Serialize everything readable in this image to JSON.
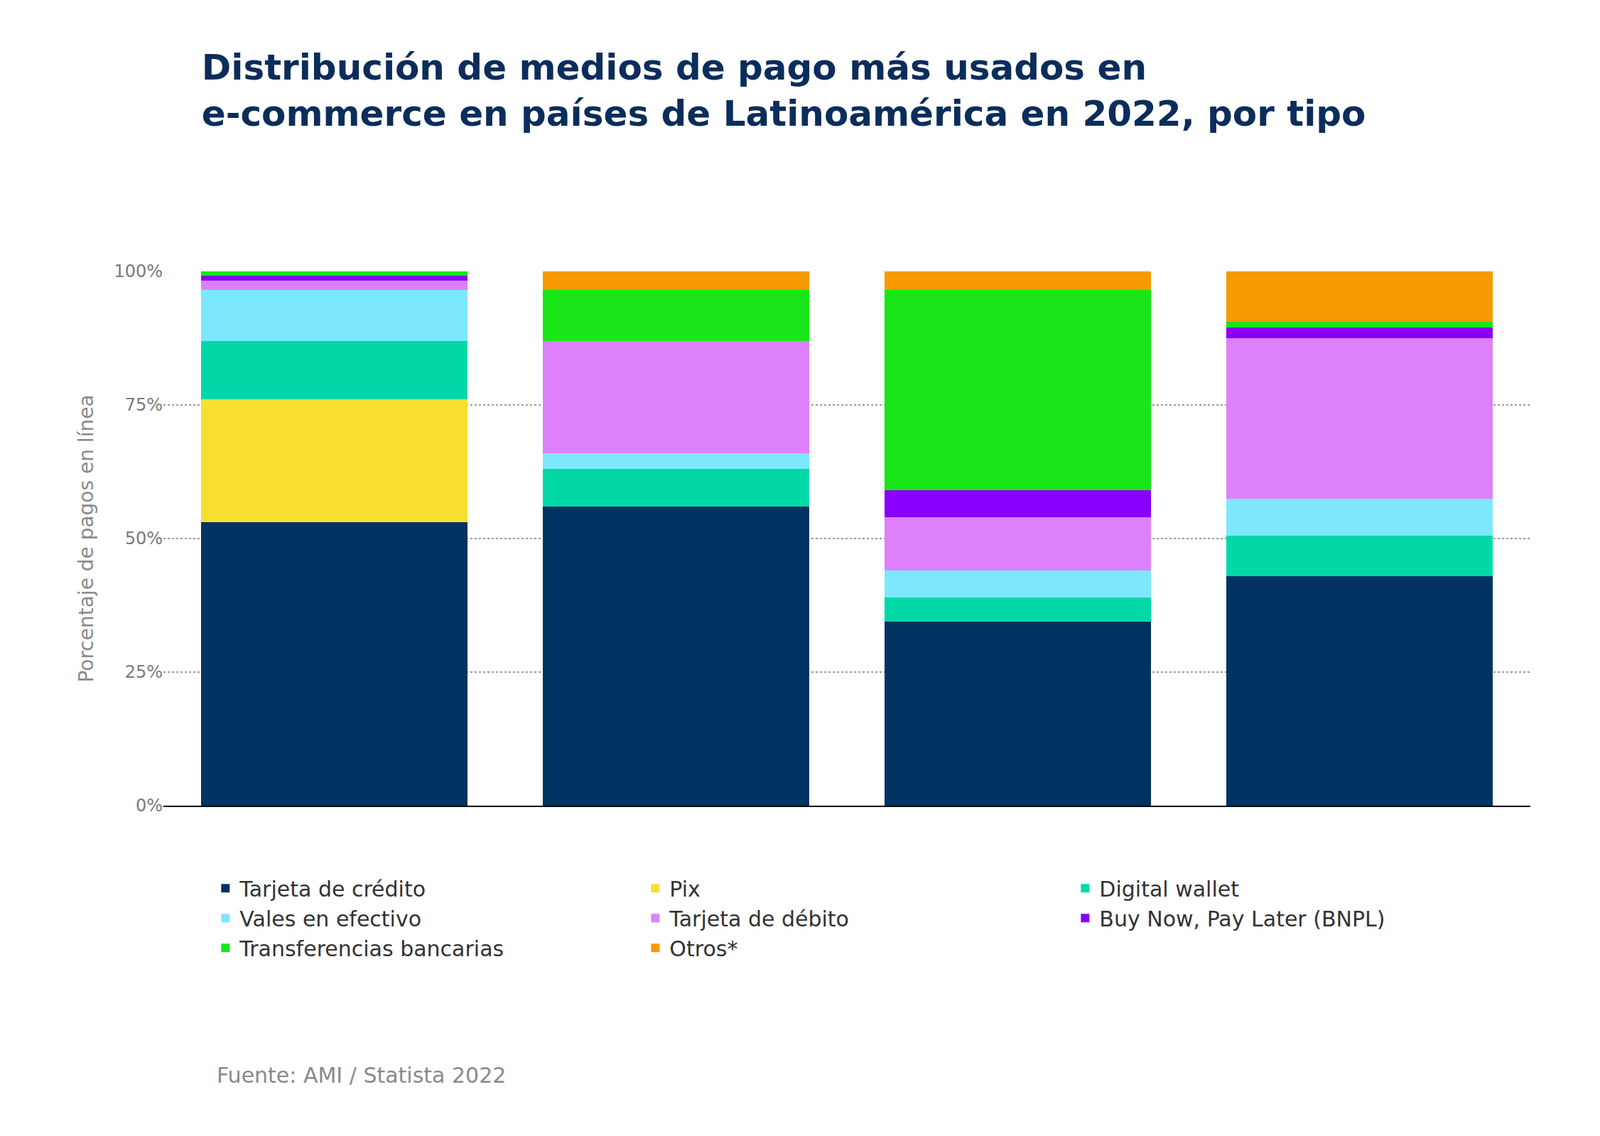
{
  "chart_data": {
    "type": "bar",
    "stacked": true,
    "title": "Distribución de medios de pago más usados en\ne-commerce en países de Latinoamérica en 2022, por tipo",
    "y_label": "Porcentaje de pagos en línea",
    "source": "Fuente: AMI / Statista 2022",
    "categories": [
      null,
      null,
      null,
      null
    ],
    "ylim": [
      0,
      100
    ],
    "yticks": [
      {
        "value": 0,
        "label": "0%"
      },
      {
        "value": 25,
        "label": "25%"
      },
      {
        "value": 50,
        "label": "50%"
      },
      {
        "value": 75,
        "label": "75%"
      },
      {
        "value": 100,
        "label": "100%"
      }
    ],
    "grid": true,
    "legend": "bottom",
    "tick_labels": "y",
    "series": [
      {
        "name": "Tarjeta de crédito",
        "color": "#003361",
        "values": [
          53,
          56,
          34.5,
          43
        ]
      },
      {
        "name": "Pix",
        "color": "#f7df32",
        "values": [
          23,
          0,
          0,
          0
        ]
      },
      {
        "name": "Digital wallet",
        "color": "#00d9a7",
        "values": [
          11,
          7,
          4.5,
          7.5
        ]
      },
      {
        "name": "Vales en efectivo",
        "color": "#7de8fb",
        "values": [
          9.5,
          3,
          5,
          7
        ]
      },
      {
        "name": "Tarjeta de débito",
        "color": "#de80fb",
        "values": [
          1.8,
          21,
          10,
          30
        ]
      },
      {
        "name": "Buy Now, Pay Later (BNPL)",
        "color": "#8800fb",
        "values": [
          0.9,
          0,
          5,
          2
        ]
      },
      {
        "name": "Transferencias bancarias",
        "color": "#18e618",
        "values": [
          0.8,
          9.5,
          37.5,
          1
        ]
      },
      {
        "name": "Otros*",
        "color": "#f79a00",
        "values": [
          0,
          3.5,
          3.5,
          9.5
        ]
      }
    ]
  }
}
